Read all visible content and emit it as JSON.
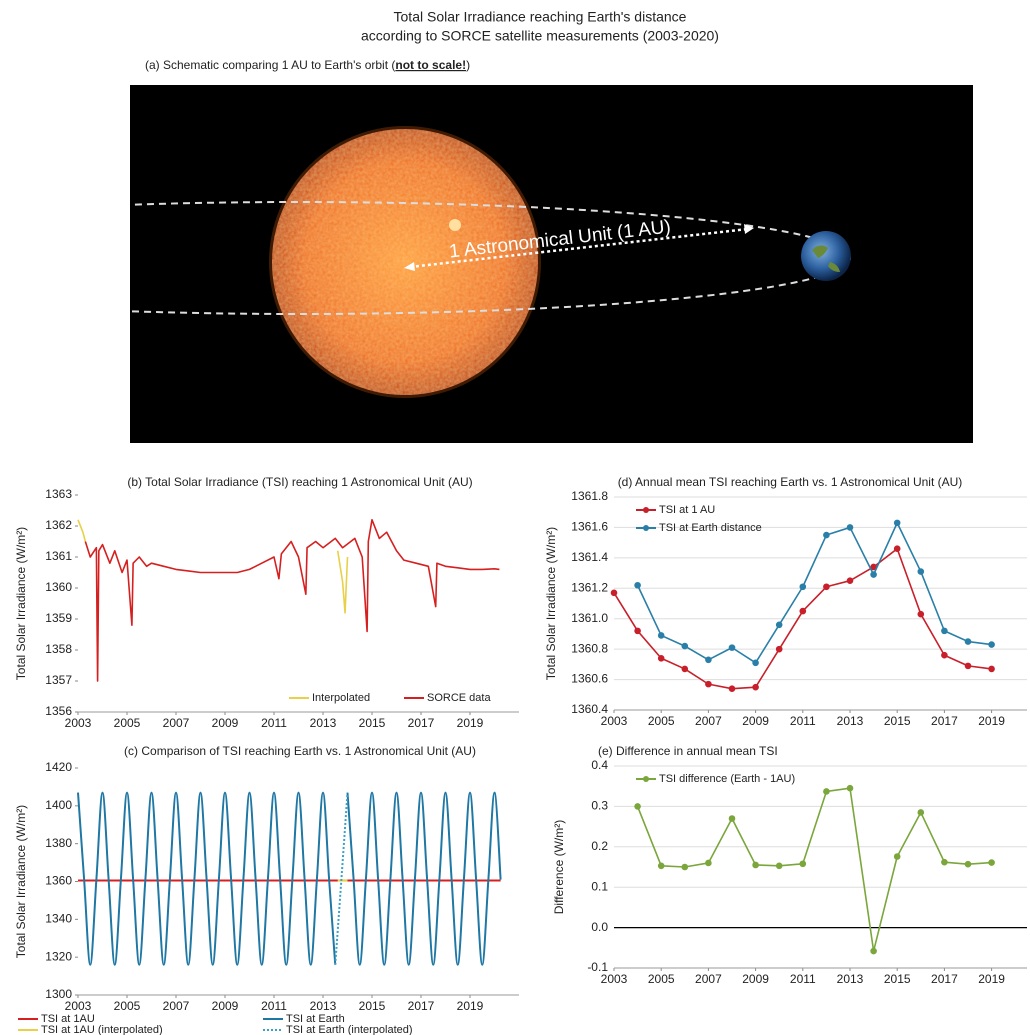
{
  "title_lines": [
    "Total Solar Irradiance reaching Earth's distance",
    "according to SORCE satellite measurements (2003-2020)"
  ],
  "schematic": {
    "caption": "(a) Schematic comparing 1 AU to Earth's orbit (",
    "emphasis": "not to scale!",
    "caption_end": ")",
    "label": "1 Astronomical Unit (1 AU)"
  },
  "chart_data": [
    {
      "type": "line",
      "title": "(b) Total Solar Irradiance (TSI) reaching 1 Astronomical Unit (AU)",
      "y_label": "Total Solar Irradiance (W/m²)",
      "xlim": [
        2003,
        2021
      ],
      "xticks": [
        2003,
        2005,
        2007,
        2009,
        2011,
        2013,
        2015,
        2017,
        2019
      ],
      "ylim": [
        1356,
        1363
      ],
      "yticks": [
        1356,
        1357,
        1358,
        1359,
        1360,
        1361,
        1362,
        1363
      ],
      "grid": false,
      "legend": "lower right",
      "smooth": false,
      "series": [
        {
          "name": "Interpolated",
          "color": "#e8d048",
          "x": [
            2003,
            2003.2,
            2003.3,
            2008,
            2013.6,
            2013.8,
            2013.9,
            2014
          ],
          "values": [
            1362.2,
            1361.8,
            1361.5,
            null,
            1361.2,
            1360.2,
            1359.2,
            1361
          ]
        },
        {
          "name": "SORCE data",
          "color": "#d62020",
          "x": [
            2003.3,
            2003.5,
            2003.75,
            2003.8,
            2003.85,
            2004,
            2004.3,
            2004.5,
            2004.8,
            2005,
            2005.2,
            2005.25,
            2005.5,
            2005.8,
            2006,
            2006.5,
            2007,
            2007.5,
            2008,
            2008.5,
            2009,
            2009.5,
            2010,
            2010.5,
            2011,
            2011.2,
            2011.3,
            2011.7,
            2012,
            2012.3,
            2012.35,
            2012.7,
            2013,
            2013.5,
            2013.8,
            2014.3,
            2014.6,
            2014.8,
            2014.85,
            2015,
            2015.3,
            2015.6,
            2016,
            2016.3,
            2016.8,
            2017.3,
            2017.6,
            2017.65,
            2018,
            2018.5,
            2019,
            2019.5,
            2020,
            2020.2
          ],
          "values": [
            1361.5,
            1361,
            1361.3,
            1357,
            1361.2,
            1361.4,
            1360.8,
            1361.2,
            1360.5,
            1360.9,
            1358.8,
            1360.8,
            1361,
            1360.7,
            1360.8,
            1360.7,
            1360.6,
            1360.55,
            1360.5,
            1360.5,
            1360.5,
            1360.5,
            1360.6,
            1360.8,
            1361,
            1360.3,
            1361.1,
            1361.5,
            1361,
            1359.8,
            1361.3,
            1361.5,
            1361.3,
            1361.6,
            1361.3,
            1361.6,
            1361,
            1358.6,
            1361.5,
            1362.2,
            1361.6,
            1361.8,
            1361.2,
            1360.9,
            1360.8,
            1360.7,
            1359.4,
            1360.8,
            1360.7,
            1360.65,
            1360.6,
            1360.6,
            1360.62,
            1360.6
          ]
        }
      ]
    },
    {
      "type": "line",
      "title": "(c) Comparison of TSI reaching Earth vs. 1 Astronomical Unit (AU)",
      "y_label": "Total Solar Irradiance (W/m²)",
      "xlim": [
        2003,
        2021
      ],
      "xticks": [
        2003,
        2005,
        2007,
        2009,
        2011,
        2013,
        2015,
        2017,
        2019
      ],
      "ylim": [
        1300,
        1420
      ],
      "yticks": [
        1300,
        1320,
        1340,
        1360,
        1380,
        1400,
        1420
      ],
      "grid": false,
      "legend": "below",
      "smooth": true,
      "series": [
        {
          "name": "TSI at 1AU",
          "color": "#d62020",
          "x": [
            2003,
            2020.25
          ],
          "values": [
            1360.5,
            1360.5
          ]
        },
        {
          "name": "TSI at Earth",
          "color": "#1f77a4",
          "x": [
            2003,
            2003.25,
            2003.5,
            2003.75,
            2004,
            2004.25,
            2004.5,
            2004.75,
            2005,
            2005.25,
            2005.5,
            2005.75,
            2006,
            2006.25,
            2006.5,
            2006.75,
            2007,
            2007.25,
            2007.5,
            2007.75,
            2008,
            2008.25,
            2008.5,
            2008.75,
            2009,
            2009.25,
            2009.5,
            2009.75,
            2010,
            2010.25,
            2010.5,
            2010.75,
            2011,
            2011.25,
            2011.5,
            2011.75,
            2012,
            2012.25,
            2012.5,
            2012.75,
            2013,
            2013.25,
            2013.5,
            2013.75,
            2014,
            2014.25,
            2014.5,
            2014.75,
            2015,
            2015.25,
            2015.5,
            2015.75,
            2016,
            2016.25,
            2016.5,
            2016.75,
            2017,
            2017.25,
            2017.5,
            2017.75,
            2018,
            2018.25,
            2018.5,
            2018.75,
            2019,
            2019.25,
            2019.5,
            2019.75,
            2020,
            2020.25
          ],
          "values": [
            1407,
            1361,
            1316,
            1361,
            1407,
            1361,
            1316,
            1361,
            1407,
            1361,
            1316,
            1361,
            1407,
            1361,
            1316,
            1361,
            1407,
            1361,
            1316,
            1361,
            1407,
            1361,
            1316,
            1361,
            1407,
            1361,
            1316,
            1361,
            1407,
            1361,
            1316,
            1361,
            1407,
            1361,
            1316,
            1361,
            1407,
            1361,
            1316,
            1361,
            1407,
            1361,
            1316,
            null,
            1407,
            1361,
            1316,
            1361,
            1407,
            1361,
            1316,
            1361,
            1407,
            1361,
            1316,
            1361,
            1407,
            1361,
            1316,
            1361,
            1407,
            1361,
            1316,
            1361,
            1407,
            1361,
            1316,
            1361,
            1407,
            1361
          ]
        },
        {
          "name": "TSI at 1AU (interpolated)",
          "color": "#e8d048",
          "x": [
            2013.6,
            2014
          ],
          "values": [
            1360.5,
            1360.5
          ]
        },
        {
          "name": "TSI at Earth (interpolated)",
          "color": "#3aa0c8",
          "style": "dotted",
          "x": [
            2013.5,
            2013.75,
            2014
          ],
          "values": [
            1316,
            1361,
            1407
          ]
        }
      ]
    },
    {
      "type": "line",
      "title": "(d) Annual mean TSI reaching Earth vs. 1 Astronomical Unit (AU)",
      "y_label": "Total Solar Irradiance (W/m²)",
      "xlim": [
        2003,
        2020.5
      ],
      "xticks": [
        2003,
        2005,
        2007,
        2009,
        2011,
        2013,
        2015,
        2017,
        2019
      ],
      "ylim": [
        1360.4,
        1361.8
      ],
      "yticks": [
        1360.4,
        1360.6,
        1360.8,
        {
          "value": 1361,
          "label": "1361.0"
        },
        1361.2,
        1361.4,
        1361.6,
        1361.8
      ],
      "grid": true,
      "legend": "upper left",
      "smooth": false,
      "markers": true,
      "x": [
        2003,
        2004,
        2005,
        2006,
        2007,
        2008,
        2009,
        2010,
        2011,
        2012,
        2013,
        2014,
        2015,
        2016,
        2017,
        2018,
        2019
      ],
      "series": [
        {
          "name": "TSI at 1 AU",
          "color": "#c8202a",
          "values": [
            1361.17,
            1360.92,
            1360.74,
            1360.67,
            1360.57,
            1360.54,
            1360.55,
            1360.8,
            1361.05,
            1361.21,
            1361.25,
            1361.34,
            1361.46,
            1361.03,
            1360.76,
            1360.69,
            1360.67
          ]
        },
        {
          "name": "TSI at Earth distance",
          "color": "#2a7fa8",
          "values": [
            null,
            1361.22,
            1360.89,
            1360.82,
            1360.73,
            1360.81,
            1360.71,
            1360.96,
            1361.21,
            1361.55,
            1361.6,
            1361.29,
            1361.63,
            1361.31,
            1360.92,
            1360.85,
            1360.83
          ]
        }
      ]
    },
    {
      "type": "line",
      "title": "(e) Difference in annual mean TSI",
      "y_label": "Difference (W/m²)",
      "xlim": [
        2003,
        2020.5
      ],
      "xticks": [
        2003,
        2005,
        2007,
        2009,
        2011,
        2013,
        2015,
        2017,
        2019
      ],
      "ylim": [
        -0.1,
        0.4
      ],
      "yticks": [
        -0.1,
        {
          "value": 0,
          "label": "0.0"
        },
        0.1,
        0.2,
        0.3,
        0.4
      ],
      "grid": true,
      "zero_line": true,
      "legend": "upper left",
      "smooth": false,
      "markers": true,
      "x": [
        2004,
        2005,
        2006,
        2007,
        2008,
        2009,
        2010,
        2011,
        2012,
        2013,
        2014,
        2015,
        2016,
        2017,
        2018,
        2019
      ],
      "series": [
        {
          "name": "TSI difference (Earth - 1AU)",
          "color": "#7aa63c",
          "values": [
            0.3,
            0.153,
            0.15,
            0.16,
            0.27,
            0.155,
            0.153,
            0.158,
            0.337,
            0.345,
            -0.058,
            0.176,
            0.285,
            0.162,
            0.157,
            0.161
          ]
        }
      ]
    }
  ]
}
